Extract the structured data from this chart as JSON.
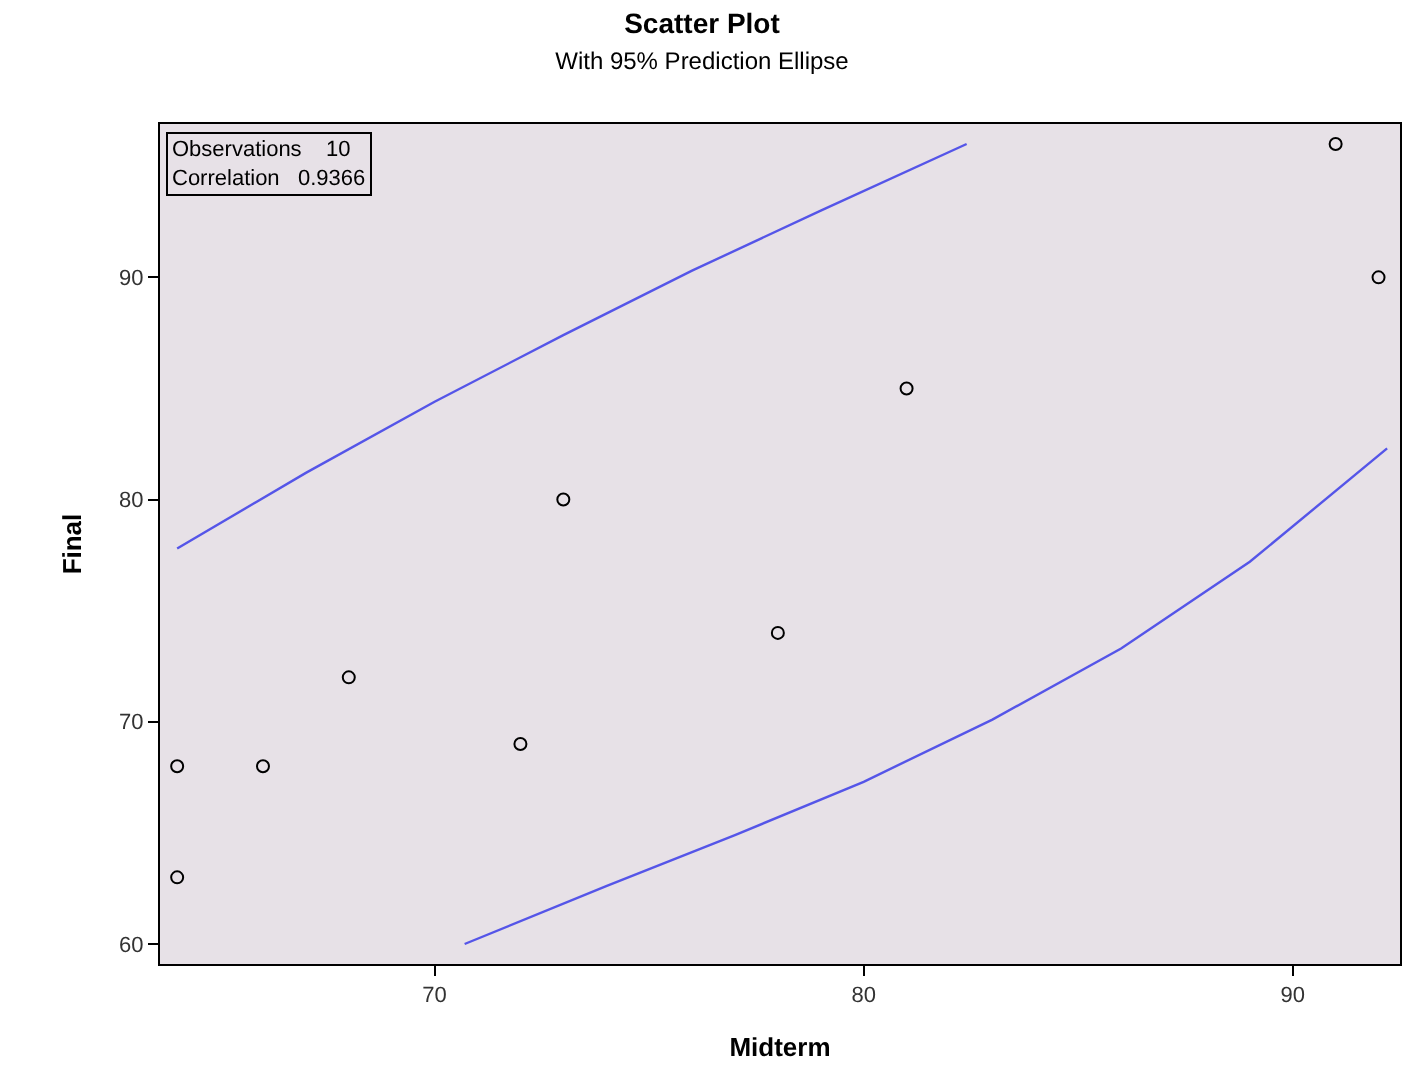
{
  "chart_data": {
    "type": "scatter",
    "title": "Scatter Plot",
    "subtitle": "With 95% Prediction Ellipse",
    "xlabel": "Midterm",
    "ylabel": "Final",
    "annotations": [
      "Observations    10",
      "Correlation   0.9366"
    ],
    "series": [
      {
        "color": "#000000",
        "marker": "circle",
        "x": [
          64,
          64,
          66,
          68,
          72,
          73,
          78,
          81,
          91,
          92
        ],
        "values": [
          68,
          63,
          68,
          72,
          69,
          80,
          74,
          85,
          96,
          90
        ]
      },
      {
        "type": "line",
        "color": "#5555e8",
        "marker": "none",
        "x": [
          64,
          67,
          70,
          73,
          76,
          79,
          82.4
        ],
        "values": [
          77.8,
          81.2,
          84.4,
          87.4,
          90.3,
          93.0,
          96.0
        ]
      },
      {
        "type": "line",
        "color": "#5555e8",
        "marker": "none",
        "x": [
          70.7,
          74,
          77,
          80,
          83,
          86,
          89,
          92.2
        ],
        "values": [
          60.0,
          62.6,
          64.9,
          67.3,
          70.1,
          73.3,
          77.2,
          82.3
        ]
      }
    ],
    "xlim": [
      63.6,
      92.5
    ],
    "ylim": [
      59.1,
      96.9
    ],
    "xticks": [
      70,
      80,
      90
    ],
    "yticks": [
      60,
      70,
      80,
      90
    ],
    "grid": false
  }
}
